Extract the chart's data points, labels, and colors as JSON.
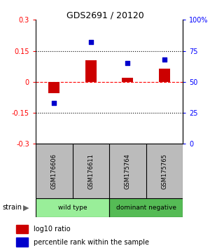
{
  "title": "GDS2691 / 20120",
  "samples": [
    "GSM176606",
    "GSM176611",
    "GSM175764",
    "GSM175765"
  ],
  "log10_ratio": [
    -0.055,
    0.105,
    0.02,
    0.065
  ],
  "percentile_rank": [
    33,
    82,
    65,
    68
  ],
  "ylim_left": [
    -0.3,
    0.3
  ],
  "ylim_right": [
    0,
    100
  ],
  "yticks_left": [
    -0.3,
    -0.15,
    0,
    0.15,
    0.3
  ],
  "yticks_right": [
    0,
    25,
    50,
    75,
    100
  ],
  "ytick_labels_left": [
    "-0.3",
    "-0.15",
    "0",
    "0.15",
    "0.3"
  ],
  "ytick_labels_right": [
    "0",
    "25",
    "50",
    "75",
    "100%"
  ],
  "hlines": [
    0.15,
    -0.15
  ],
  "bar_color": "#cc0000",
  "scatter_color": "#0000cc",
  "bar_width": 0.3,
  "groups": [
    {
      "label": "wild type",
      "samples": [
        0,
        1
      ],
      "color": "#99ee99"
    },
    {
      "label": "dominant negative",
      "samples": [
        2,
        3
      ],
      "color": "#55bb55"
    }
  ],
  "strain_label": "strain",
  "legend_bar_label": "log10 ratio",
  "legend_scatter_label": "percentile rank within the sample",
  "background_color": "#ffffff",
  "sample_box_color": "#bbbbbb",
  "title_fontsize": 9
}
